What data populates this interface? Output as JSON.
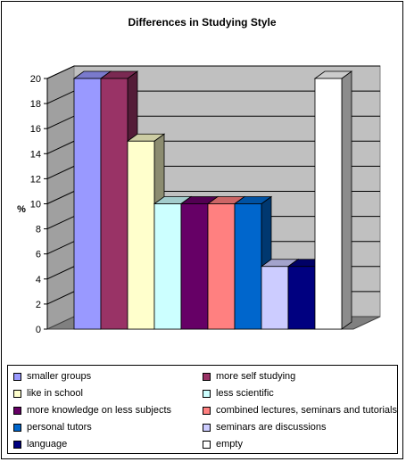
{
  "chart_data": {
    "type": "bar",
    "title": "Differences in Studying Style",
    "ylabel": "%",
    "xlabel": "",
    "ylim": [
      0,
      20
    ],
    "yticks": [
      0,
      2,
      4,
      6,
      8,
      10,
      12,
      14,
      16,
      18,
      20
    ],
    "grid": true,
    "legend_position": "bottom",
    "series": [
      {
        "name": "smaller groups",
        "value": 20,
        "color": "#9999ff"
      },
      {
        "name": "more self studying",
        "value": 20,
        "color": "#993366"
      },
      {
        "name": "like in school",
        "value": 15,
        "color": "#ffffcc"
      },
      {
        "name": "less scientific",
        "value": 10,
        "color": "#ccffff"
      },
      {
        "name": "more knowledge on less subjects",
        "value": 10,
        "color": "#660066"
      },
      {
        "name": "combined lectures, seminars and tutorials",
        "value": 10,
        "color": "#ff8080"
      },
      {
        "name": "personal tutors",
        "value": 10,
        "color": "#0066cc"
      },
      {
        "name": "seminars are discussions",
        "value": 5,
        "color": "#ccccff"
      },
      {
        "name": "language",
        "value": 5,
        "color": "#000080"
      },
      {
        "name": "empty",
        "value": 20,
        "color": "#ffffff"
      }
    ]
  }
}
